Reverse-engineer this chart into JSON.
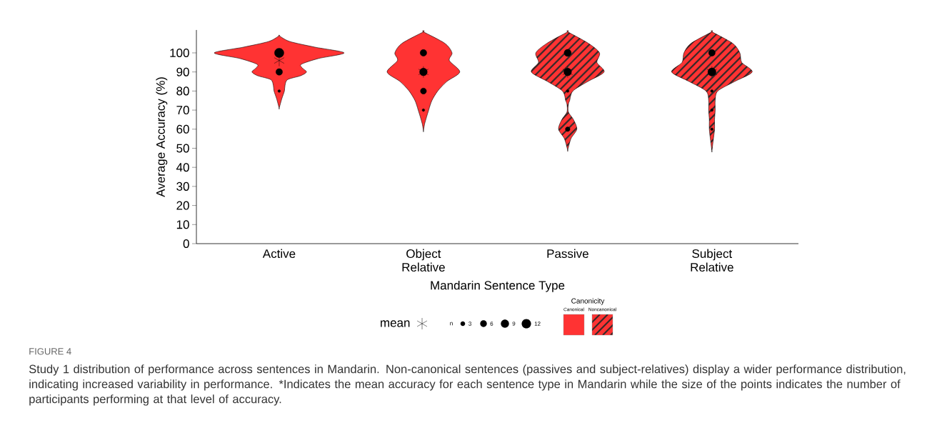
{
  "chart_data": {
    "type": "bubble",
    "xlabel": "Mandarin Sentence Type",
    "ylabel": "Average Accuracy (%)",
    "categories": [
      "Active",
      "Object Relative",
      "Passive",
      "Subject Relative"
    ],
    "ylim": [
      0,
      112
    ],
    "yticks": [
      0,
      10,
      20,
      30,
      40,
      50,
      60,
      70,
      80,
      90,
      100
    ],
    "legend": "bottom",
    "legend_title": "Canonicity",
    "size_legend": [
      3,
      6,
      9,
      12
    ],
    "series": [
      {
        "name": "mean",
        "type": "scatter",
        "marker": "cross",
        "color": "#000000",
        "x": [
          "Active",
          "Object Relative",
          "Passive",
          "Subject Relative"
        ],
        "values": [
          96,
          90,
          90,
          90
        ]
      },
      {
        "color": "#000000",
        "x": [
          "Active",
          "Active",
          "Active",
          "Object Relative",
          "Object Relative",
          "Object Relative",
          "Object Relative",
          "Passive",
          "Passive",
          "Passive",
          "Passive",
          "Subject Relative",
          "Subject Relative",
          "Subject Relative",
          "Subject Relative",
          "Subject Relative"
        ],
        "values": [
          100,
          90,
          80,
          100,
          90,
          80,
          70,
          100,
          90,
          80,
          60,
          100,
          90,
          80,
          70,
          60
        ],
        "sizes": [
          12,
          6,
          1,
          6,
          8,
          5,
          1,
          7,
          8,
          1,
          3,
          6,
          9,
          1,
          1,
          1
        ]
      }
    ],
    "annotations": [
      "n",
      "FIGURE 4",
      "Study 1 distribution of performance across sentences in Mandarin. Non-canonical sentences (passives and subject-relatives) display a wider performance distribution, indicating increased variability in performance. *Indicates the mean accuracy for each sentence type in Mandarin while the size of the points indicates the number of participants performing at that level of accuracy.",
      "Canonical",
      "Noncanonical"
    ]
  }
}
